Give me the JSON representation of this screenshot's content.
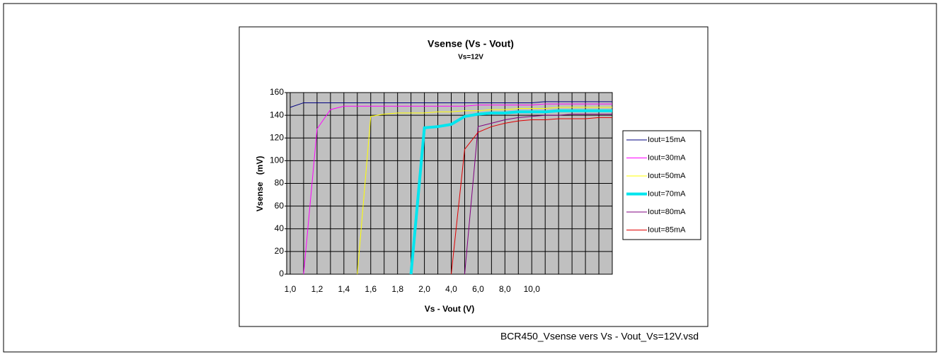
{
  "chart_data": {
    "type": "line",
    "title": "Vsense (Vs - Vout)",
    "subtitle": "Vs=12V",
    "x_label": "Vs - Vout (V)",
    "y_label": "Vsense   (mV)",
    "footer": "BCR450_Vsense vers Vs - Vout_Vs=12V.vsd",
    "categories": [
      "1,0",
      null,
      "1,2",
      null,
      "1,4",
      null,
      "1,6",
      null,
      "1,8",
      null,
      "2,0",
      null,
      "4,0",
      null,
      "6,0",
      null,
      "8,0",
      null,
      "10,0",
      null,
      null,
      null,
      null,
      null,
      null
    ],
    "ylim": [
      0,
      160
    ],
    "yticks": [
      0,
      20,
      40,
      60,
      80,
      100,
      120,
      140,
      160
    ],
    "grid": true,
    "background": "#c0c0c0",
    "series": [
      {
        "name": "Iout=15mA",
        "color": "#000080",
        "width": 1,
        "values": [
          147,
          151,
          151,
          151,
          151,
          151,
          151,
          151,
          151,
          151,
          151,
          151,
          151,
          151,
          151,
          151,
          151,
          151,
          151,
          152,
          152,
          152,
          152,
          152,
          152
        ]
      },
      {
        "name": "Iout=30mA",
        "color": "#ff00ff",
        "width": 1,
        "values": [
          null,
          0,
          128,
          145,
          148,
          148,
          148,
          148,
          148,
          148,
          148,
          148,
          148,
          148,
          149,
          149,
          149,
          149,
          149,
          150,
          150,
          150,
          150,
          150,
          150
        ]
      },
      {
        "name": "Iout=50mA",
        "color": "#ffff00",
        "width": 1,
        "values": [
          null,
          null,
          null,
          null,
          null,
          0,
          139,
          141,
          142,
          142,
          142,
          143,
          143,
          144,
          144,
          145,
          145,
          146,
          146,
          146,
          147,
          147,
          147,
          147,
          147
        ]
      },
      {
        "name": "Iout=70mA",
        "color": "#00e5ee",
        "width": 4,
        "values": [
          null,
          null,
          null,
          null,
          null,
          null,
          null,
          null,
          null,
          0,
          129,
          130,
          132,
          139,
          141,
          142,
          142,
          143,
          143,
          143,
          144,
          144,
          144,
          144,
          144
        ]
      },
      {
        "name": "Iout=80mA",
        "color": "#800080",
        "width": 1,
        "values": [
          null,
          null,
          null,
          null,
          null,
          null,
          null,
          null,
          null,
          null,
          null,
          null,
          null,
          0,
          130,
          133,
          136,
          138,
          139,
          140,
          140,
          141,
          141,
          141,
          141
        ]
      },
      {
        "name": "Iout=85mA",
        "color": "#e00000",
        "width": 1,
        "values": [
          null,
          null,
          null,
          null,
          null,
          null,
          null,
          null,
          null,
          null,
          null,
          null,
          0,
          110,
          125,
          130,
          133,
          135,
          136,
          136,
          137,
          137,
          137,
          138,
          138
        ]
      }
    ]
  }
}
